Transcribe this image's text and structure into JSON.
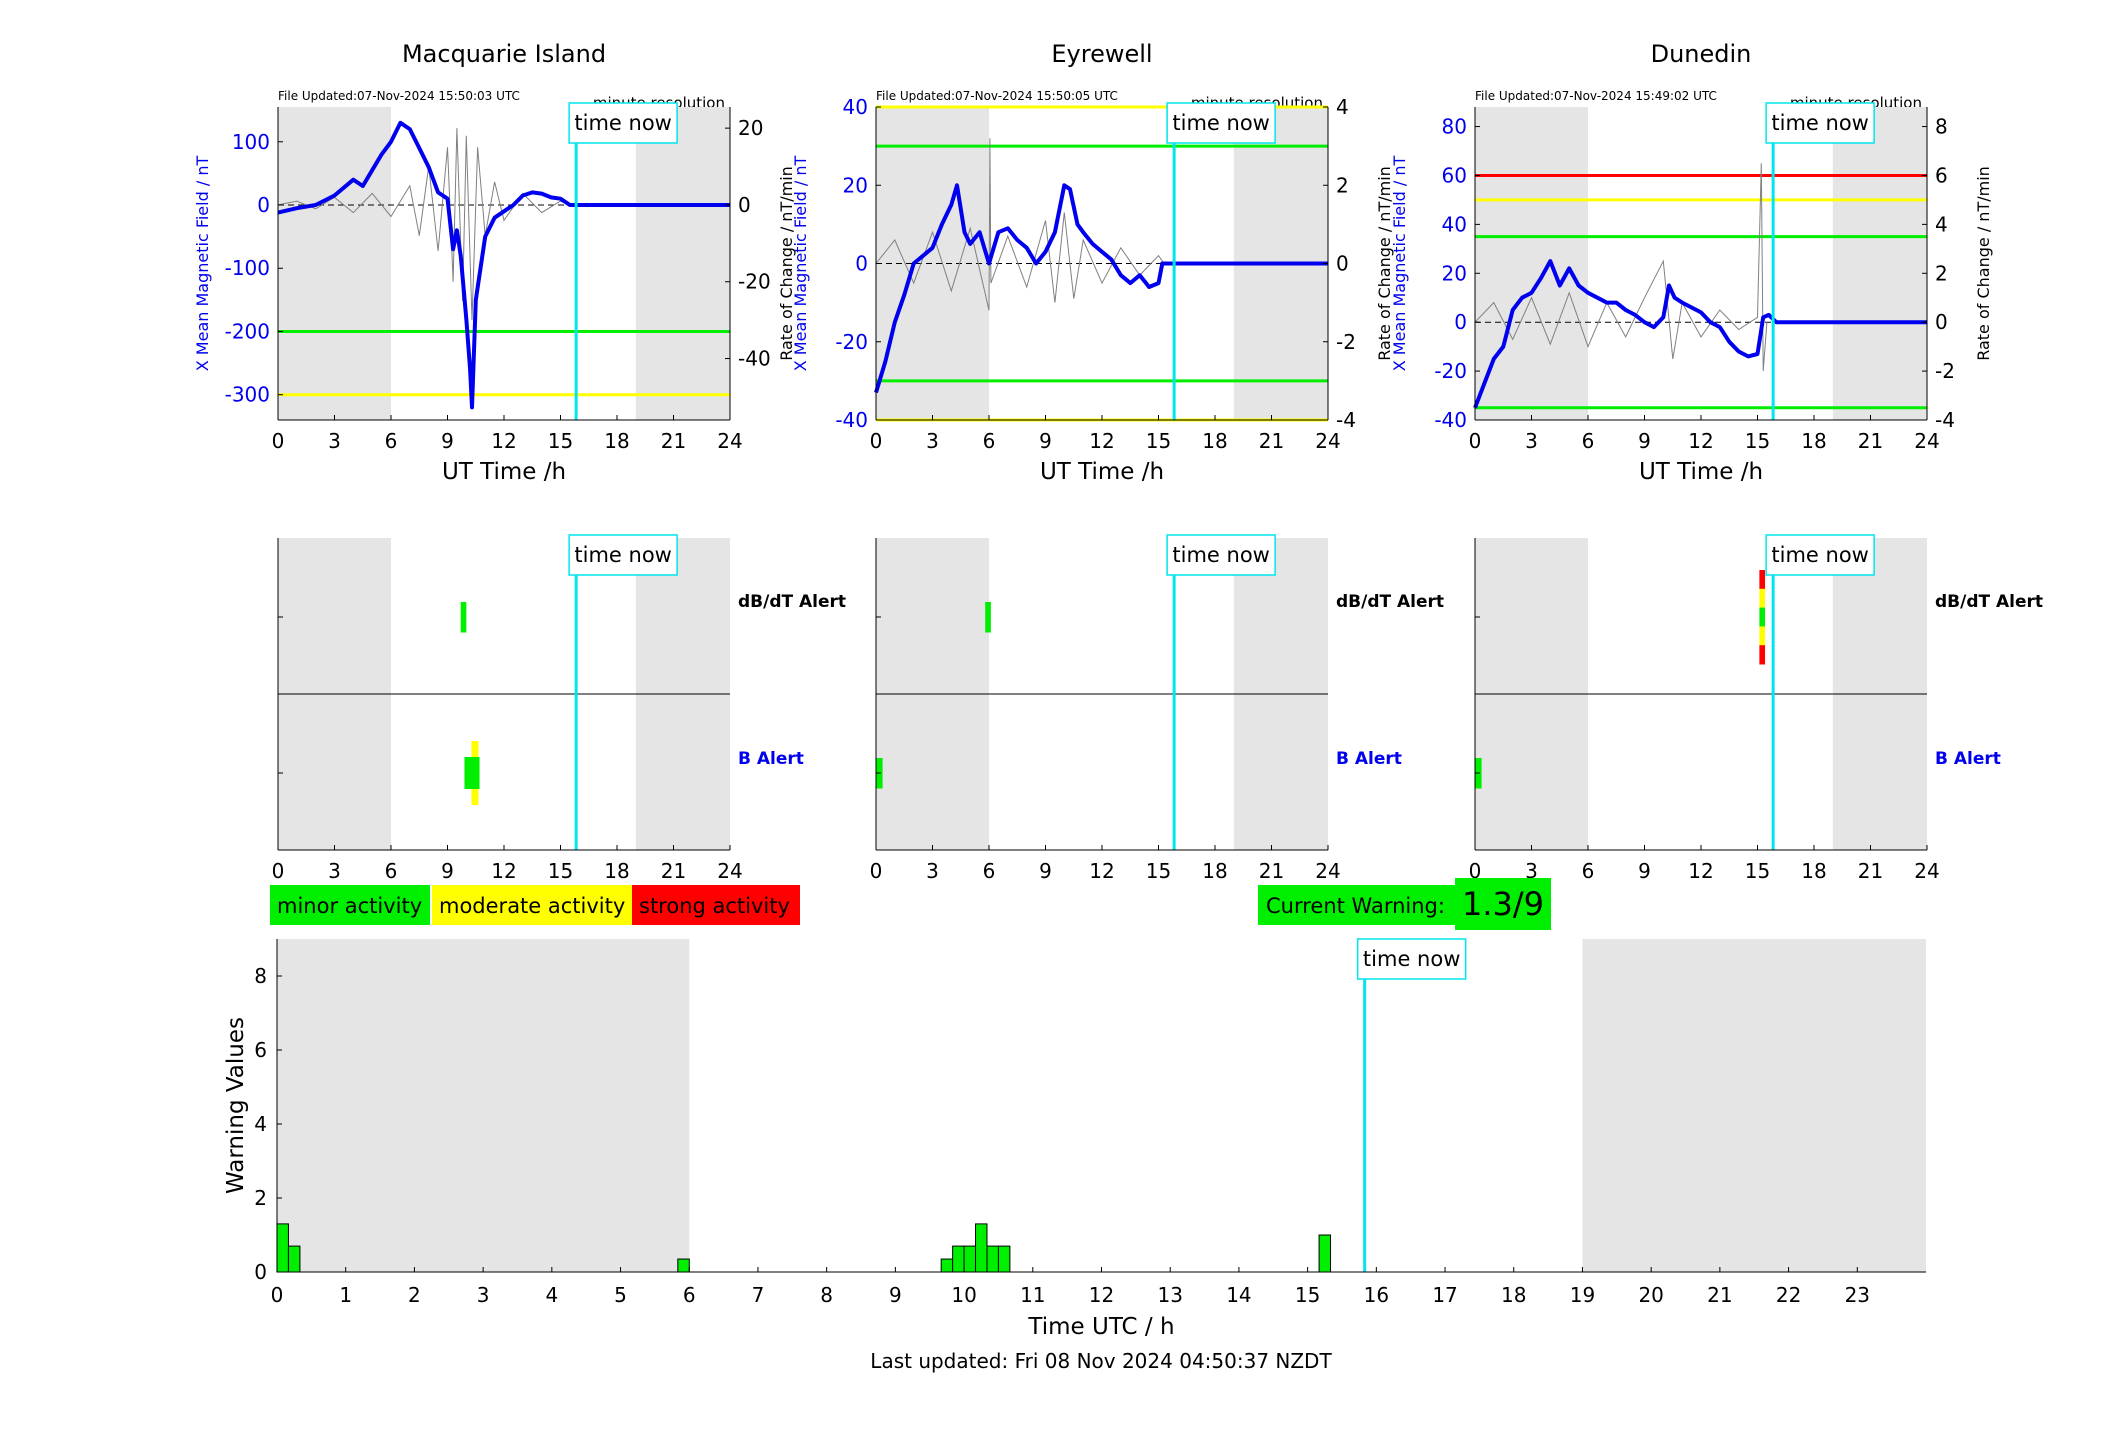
{
  "footer": {
    "last_updated": "Last updated: Fri 08 Nov 2024 04:50:37 NZDT"
  },
  "common": {
    "time_now_label": "time now",
    "x_axis_label": "UT Time /h",
    "left_axis_label": "X Mean Magnetic Field / nT",
    "right_axis_label": "Rate of Change / nT/min",
    "resolution_label": "minute resolution",
    "dbdt_alert_label": "dB/dT Alert",
    "b_alert_label": "B Alert"
  },
  "legend": {
    "minor": "minor activity",
    "moderate": "moderate activity",
    "strong": "strong activity"
  },
  "current_warning": {
    "label": "Current Warning:",
    "value": "1.3/9"
  },
  "colors": {
    "field": "#0000ee",
    "rate": "#808080",
    "shade": "#e5e5e5",
    "now_line": "#00e5ee",
    "minor": "#00ee00",
    "moderate": "#ffff00",
    "strong": "#ff0000"
  },
  "chart_data": [
    {
      "type": "line",
      "title": "Macquarie Island",
      "file_updated": "File Updated:07-Nov-2024 15:50:03 UTC",
      "xlabel": "UT Time /h",
      "ylabel": "X Mean Magnetic Field / nT",
      "y2label": "Rate of Change / nT/min",
      "xlim": [
        0,
        24
      ],
      "ylim": [
        -340,
        155
      ],
      "y2lim": [
        -56,
        25.5
      ],
      "xticks": [
        0,
        3,
        6,
        9,
        12,
        15,
        18,
        21,
        24
      ],
      "yticks": [
        100,
        0,
        -100,
        -200,
        -300
      ],
      "y2ticks": [
        20,
        0,
        -20,
        -40
      ],
      "shaded": [
        [
          0,
          6
        ],
        [
          19,
          24
        ]
      ],
      "time_now": 15.83,
      "thresholds": [
        {
          "value": -200,
          "color": "green"
        },
        {
          "value": -300,
          "color": "yellow"
        }
      ],
      "series": [
        {
          "name": "X Mean Magnetic Field",
          "axis": "left",
          "points": [
            [
              0,
              -12
            ],
            [
              1,
              -5
            ],
            [
              2,
              0
            ],
            [
              3,
              15
            ],
            [
              4,
              40
            ],
            [
              4.5,
              30
            ],
            [
              5,
              55
            ],
            [
              5.5,
              80
            ],
            [
              6,
              100
            ],
            [
              6.5,
              130
            ],
            [
              7,
              120
            ],
            [
              7.5,
              90
            ],
            [
              8,
              60
            ],
            [
              8.5,
              20
            ],
            [
              9,
              10
            ],
            [
              9.3,
              -70
            ],
            [
              9.5,
              -40
            ],
            [
              9.7,
              -80
            ],
            [
              10,
              -180
            ],
            [
              10.2,
              -260
            ],
            [
              10.3,
              -320
            ],
            [
              10.5,
              -150
            ],
            [
              11,
              -50
            ],
            [
              11.5,
              -20
            ],
            [
              12,
              -10
            ],
            [
              12.5,
              0
            ],
            [
              13,
              15
            ],
            [
              13.5,
              20
            ],
            [
              14,
              18
            ],
            [
              14.5,
              12
            ],
            [
              15,
              10
            ],
            [
              15.5,
              0
            ],
            [
              16,
              0
            ],
            [
              24,
              0
            ]
          ]
        },
        {
          "name": "Rate of Change",
          "axis": "right",
          "points": [
            [
              0,
              0
            ],
            [
              1,
              1
            ],
            [
              2,
              -1
            ],
            [
              3,
              2
            ],
            [
              4,
              -2
            ],
            [
              5,
              3
            ],
            [
              6,
              -3
            ],
            [
              7,
              5
            ],
            [
              7.5,
              -8
            ],
            [
              8,
              10
            ],
            [
              8.5,
              -12
            ],
            [
              9,
              15
            ],
            [
              9.3,
              -20
            ],
            [
              9.5,
              20
            ],
            [
              9.8,
              -25
            ],
            [
              10,
              18
            ],
            [
              10.3,
              -30
            ],
            [
              10.6,
              15
            ],
            [
              11,
              -8
            ],
            [
              11.5,
              6
            ],
            [
              12,
              -4
            ],
            [
              13,
              3
            ],
            [
              14,
              -2
            ],
            [
              15,
              1
            ],
            [
              15.5,
              0
            ]
          ]
        }
      ]
    },
    {
      "type": "line",
      "title": "Eyrewell",
      "file_updated": "File Updated:07-Nov-2024 15:50:05 UTC",
      "xlabel": "UT Time /h",
      "ylabel": "X Mean Magnetic Field / nT",
      "y2label": "Rate of Change / nT/min",
      "xlim": [
        0,
        24
      ],
      "ylim": [
        -40,
        40
      ],
      "y2lim": [
        -4,
        4
      ],
      "xticks": [
        0,
        3,
        6,
        9,
        12,
        15,
        18,
        21,
        24
      ],
      "yticks": [
        40,
        20,
        0,
        -20,
        -40
      ],
      "y2ticks": [
        4,
        2,
        0,
        -2,
        -4
      ],
      "shaded": [
        [
          0,
          6
        ],
        [
          19,
          24
        ]
      ],
      "time_now": 15.83,
      "thresholds": [
        {
          "value": 40,
          "color": "yellow"
        },
        {
          "value": 30,
          "color": "green"
        },
        {
          "value": -30,
          "color": "green"
        },
        {
          "value": -40,
          "color": "yellow"
        }
      ],
      "series": [
        {
          "name": "X Mean Magnetic Field",
          "axis": "left",
          "points": [
            [
              0,
              -33
            ],
            [
              0.5,
              -25
            ],
            [
              1,
              -15
            ],
            [
              1.5,
              -8
            ],
            [
              2,
              0
            ],
            [
              2.5,
              2
            ],
            [
              3,
              4
            ],
            [
              3.5,
              10
            ],
            [
              4,
              15
            ],
            [
              4.3,
              20
            ],
            [
              4.7,
              8
            ],
            [
              5,
              5
            ],
            [
              5.5,
              8
            ],
            [
              6,
              0
            ],
            [
              6.5,
              8
            ],
            [
              7,
              9
            ],
            [
              7.5,
              6
            ],
            [
              8,
              4
            ],
            [
              8.5,
              0
            ],
            [
              9,
              3
            ],
            [
              9.5,
              8
            ],
            [
              10,
              20
            ],
            [
              10.3,
              19
            ],
            [
              10.7,
              10
            ],
            [
              11,
              8
            ],
            [
              11.5,
              5
            ],
            [
              12,
              3
            ],
            [
              12.5,
              1
            ],
            [
              13,
              -3
            ],
            [
              13.5,
              -5
            ],
            [
              14,
              -3
            ],
            [
              14.5,
              -6
            ],
            [
              15,
              -5
            ],
            [
              15.2,
              0
            ],
            [
              16,
              0
            ],
            [
              24,
              0
            ]
          ]
        },
        {
          "name": "Rate of Change",
          "axis": "right",
          "points": [
            [
              0,
              0
            ],
            [
              1,
              0.6
            ],
            [
              2,
              -0.5
            ],
            [
              3,
              0.8
            ],
            [
              4,
              -0.7
            ],
            [
              5,
              0.9
            ],
            [
              6,
              -1.2
            ],
            [
              6.05,
              3.2
            ],
            [
              6.1,
              -0.5
            ],
            [
              7,
              0.7
            ],
            [
              8,
              -0.6
            ],
            [
              9,
              1.1
            ],
            [
              9.5,
              -1.0
            ],
            [
              10,
              1.3
            ],
            [
              10.5,
              -0.9
            ],
            [
              11,
              0.6
            ],
            [
              12,
              -0.5
            ],
            [
              13,
              0.4
            ],
            [
              14,
              -0.3
            ],
            [
              15,
              0.2
            ],
            [
              15.3,
              0
            ]
          ]
        }
      ]
    },
    {
      "type": "line",
      "title": "Dunedin",
      "file_updated": "File Updated:07-Nov-2024 15:49:02 UTC",
      "xlabel": "UT Time /h",
      "ylabel": "X Mean Magnetic Field / nT",
      "y2label": "Rate of Change / nT/min",
      "xlim": [
        0,
        24
      ],
      "ylim": [
        -40,
        88
      ],
      "y2lim": [
        -4,
        8.8
      ],
      "xticks": [
        0,
        3,
        6,
        9,
        12,
        15,
        18,
        21,
        24
      ],
      "yticks": [
        80,
        60,
        40,
        20,
        0,
        -20,
        -40
      ],
      "y2ticks": [
        8,
        6,
        4,
        2,
        0,
        -2,
        -4
      ],
      "shaded": [
        [
          0,
          6
        ],
        [
          19,
          24
        ]
      ],
      "time_now": 15.83,
      "thresholds": [
        {
          "value": 60,
          "color": "red"
        },
        {
          "value": 50,
          "color": "yellow"
        },
        {
          "value": 35,
          "color": "green"
        },
        {
          "value": -35,
          "color": "green"
        }
      ],
      "series": [
        {
          "name": "X Mean Magnetic Field",
          "axis": "left",
          "points": [
            [
              0,
              -35
            ],
            [
              0.5,
              -25
            ],
            [
              1,
              -15
            ],
            [
              1.5,
              -10
            ],
            [
              2,
              5
            ],
            [
              2.5,
              10
            ],
            [
              3,
              12
            ],
            [
              3.5,
              18
            ],
            [
              4,
              25
            ],
            [
              4.5,
              15
            ],
            [
              5,
              22
            ],
            [
              5.5,
              15
            ],
            [
              6,
              12
            ],
            [
              6.5,
              10
            ],
            [
              7,
              8
            ],
            [
              7.5,
              8
            ],
            [
              8,
              5
            ],
            [
              8.5,
              3
            ],
            [
              9,
              0
            ],
            [
              9.5,
              -2
            ],
            [
              10,
              2
            ],
            [
              10.3,
              15
            ],
            [
              10.6,
              10
            ],
            [
              11,
              8
            ],
            [
              11.5,
              6
            ],
            [
              12,
              4
            ],
            [
              12.5,
              0
            ],
            [
              13,
              -2
            ],
            [
              13.5,
              -8
            ],
            [
              14,
              -12
            ],
            [
              14.5,
              -14
            ],
            [
              15,
              -13
            ],
            [
              15.3,
              2
            ],
            [
              15.6,
              3
            ],
            [
              16,
              0
            ],
            [
              24,
              0
            ]
          ]
        },
        {
          "name": "Rate of Change",
          "axis": "right",
          "points": [
            [
              0,
              0
            ],
            [
              1,
              0.8
            ],
            [
              2,
              -0.7
            ],
            [
              3,
              1.0
            ],
            [
              4,
              -0.9
            ],
            [
              5,
              1.2
            ],
            [
              6,
              -1.0
            ],
            [
              7,
              0.8
            ],
            [
              8,
              -0.6
            ],
            [
              9,
              1.0
            ],
            [
              10,
              2.5
            ],
            [
              10.5,
              -1.5
            ],
            [
              11,
              0.8
            ],
            [
              12,
              -0.6
            ],
            [
              13,
              0.5
            ],
            [
              14,
              -0.3
            ],
            [
              15,
              0.2
            ],
            [
              15.2,
              6.5
            ],
            [
              15.3,
              -2.0
            ],
            [
              15.5,
              0
            ]
          ]
        }
      ]
    },
    {
      "type": "bar",
      "title": "",
      "xlabel": "Time UTC / h",
      "ylabel": "Warning Values",
      "xlim": [
        0,
        24
      ],
      "ylim": [
        0,
        9
      ],
      "xticks": [
        0,
        1,
        2,
        3,
        4,
        5,
        6,
        7,
        8,
        9,
        10,
        11,
        12,
        13,
        14,
        15,
        16,
        17,
        18,
        19,
        20,
        21,
        22,
        23
      ],
      "yticks": [
        0,
        2,
        4,
        6,
        8
      ],
      "shaded": [
        [
          0,
          6
        ],
        [
          19,
          24
        ]
      ],
      "time_now": 15.83,
      "bar_width": 0.167,
      "bars": [
        [
          0.083,
          1.3
        ],
        [
          0.25,
          0.7
        ],
        [
          5.917,
          0.35
        ],
        [
          9.75,
          0.35
        ],
        [
          9.917,
          0.7
        ],
        [
          10.083,
          0.7
        ],
        [
          10.25,
          1.3
        ],
        [
          10.417,
          0.7
        ],
        [
          10.583,
          0.7
        ],
        [
          15.25,
          1.0
        ]
      ]
    }
  ],
  "alert_panels": [
    {
      "station": "Macquarie Island",
      "xlim": [
        0,
        24
      ],
      "xticks": [
        0,
        3,
        6,
        9,
        12,
        15,
        18,
        21,
        24
      ],
      "shaded": [
        [
          0,
          6
        ],
        [
          19,
          24
        ]
      ],
      "time_now": 15.83,
      "dbdt_events": [
        {
          "t0": 9.7,
          "t1": 10.0,
          "levels": [
            "minor"
          ]
        }
      ],
      "b_events": [
        {
          "t0": 9.9,
          "t1": 10.7,
          "levels": [
            "minor",
            "moderate"
          ]
        }
      ]
    },
    {
      "station": "Eyrewell",
      "xlim": [
        0,
        24
      ],
      "xticks": [
        0,
        3,
        6,
        9,
        12,
        15,
        18,
        21,
        24
      ],
      "shaded": [
        [
          0,
          6
        ],
        [
          19,
          24
        ]
      ],
      "time_now": 15.83,
      "dbdt_events": [
        {
          "t0": 5.8,
          "t1": 6.1,
          "levels": [
            "minor"
          ]
        }
      ],
      "b_events": [
        {
          "t0": 0.0,
          "t1": 0.35,
          "levels": [
            "minor"
          ]
        }
      ]
    },
    {
      "station": "Dunedin",
      "xlim": [
        0,
        24
      ],
      "xticks": [
        0,
        3,
        6,
        9,
        12,
        15,
        18,
        21,
        24
      ],
      "shaded": [
        [
          0,
          6
        ],
        [
          19,
          24
        ]
      ],
      "time_now": 15.83,
      "dbdt_events": [
        {
          "t0": 15.1,
          "t1": 15.4,
          "levels": [
            "strong",
            "moderate",
            "minor",
            "moderate",
            "strong"
          ]
        }
      ],
      "b_events": [
        {
          "t0": 0.0,
          "t1": 0.35,
          "levels": [
            "minor"
          ]
        }
      ]
    }
  ]
}
